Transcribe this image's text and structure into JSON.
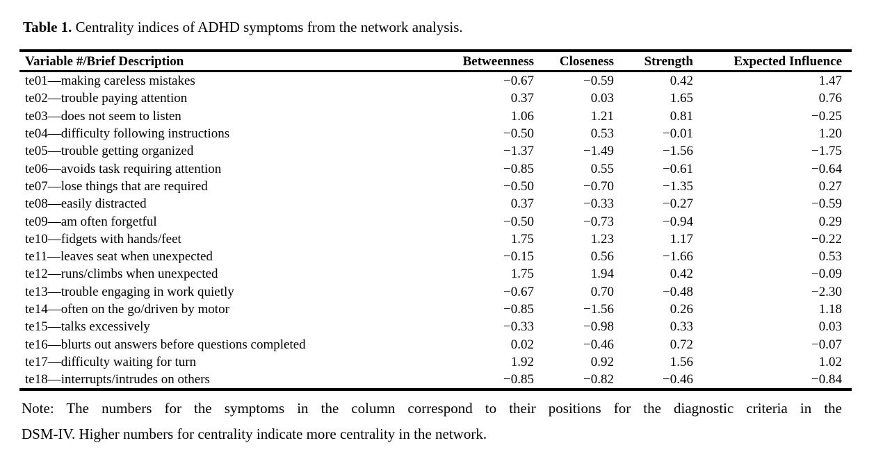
{
  "caption": {
    "label": "Table 1.",
    "text": "Centrality indices of ADHD symptoms from the network analysis."
  },
  "table": {
    "columns": [
      "Variable #/Brief Description",
      "Betweenness",
      "Closeness",
      "Strength",
      "Expected Influence"
    ],
    "rows": [
      [
        "te01—making careless mistakes",
        "−0.67",
        "−0.59",
        "0.42",
        "1.47"
      ],
      [
        "te02—trouble paying attention",
        "0.37",
        "0.03",
        "1.65",
        "0.76"
      ],
      [
        "te03—does not seem to listen",
        "1.06",
        "1.21",
        "0.81",
        "−0.25"
      ],
      [
        "te04—difficulty following instructions",
        "−0.50",
        "0.53",
        "−0.01",
        "1.20"
      ],
      [
        "te05—trouble getting organized",
        "−1.37",
        "−1.49",
        "−1.56",
        "−1.75"
      ],
      [
        "te06—avoids task requiring attention",
        "−0.85",
        "0.55",
        "−0.61",
        "−0.64"
      ],
      [
        "te07—lose things that are required",
        "−0.50",
        "−0.70",
        "−1.35",
        "0.27"
      ],
      [
        "te08—easily distracted",
        "0.37",
        "−0.33",
        "−0.27",
        "−0.59"
      ],
      [
        "te09—am often forgetful",
        "−0.50",
        "−0.73",
        "−0.94",
        "0.29"
      ],
      [
        "te10—fidgets with hands/feet",
        "1.75",
        "1.23",
        "1.17",
        "−0.22"
      ],
      [
        "te11—leaves seat when unexpected",
        "−0.15",
        "0.56",
        "−1.66",
        "0.53"
      ],
      [
        "te12—runs/climbs when unexpected",
        "1.75",
        "1.94",
        "0.42",
        "−0.09"
      ],
      [
        "te13—trouble engaging in work quietly",
        "−0.67",
        "0.70",
        "−0.48",
        "−2.30"
      ],
      [
        "te14—often on the go/driven by motor",
        "−0.85",
        "−1.56",
        "0.26",
        "1.18"
      ],
      [
        "te15—talks excessively",
        "−0.33",
        "−0.98",
        "0.33",
        "0.03"
      ],
      [
        "te16—blurts out answers before questions completed",
        "0.02",
        "−0.46",
        "0.72",
        "−0.07"
      ],
      [
        "te17—difficulty waiting for turn",
        "1.92",
        "0.92",
        "1.56",
        "1.02"
      ],
      [
        "te18—interrupts/intrudes on others",
        "−0.85",
        "−0.82",
        "−0.46",
        "−0.84"
      ]
    ]
  },
  "note": {
    "full_text": "Note: The numbers for the symptoms in the column correspond to their positions for the diagnostic criteria in the DSM-IV. Higher numbers for centrality indicate more centrality in the network.",
    "lines": [
      "Note: The numbers for the symptoms in the column correspond to their positions for the diagnostic criteria in the",
      "DSM-IV. Higher numbers for centrality indicate more centrality in the network."
    ]
  },
  "colors": {
    "text": "#000000",
    "background": "#ffffff",
    "rule": "#000000"
  }
}
